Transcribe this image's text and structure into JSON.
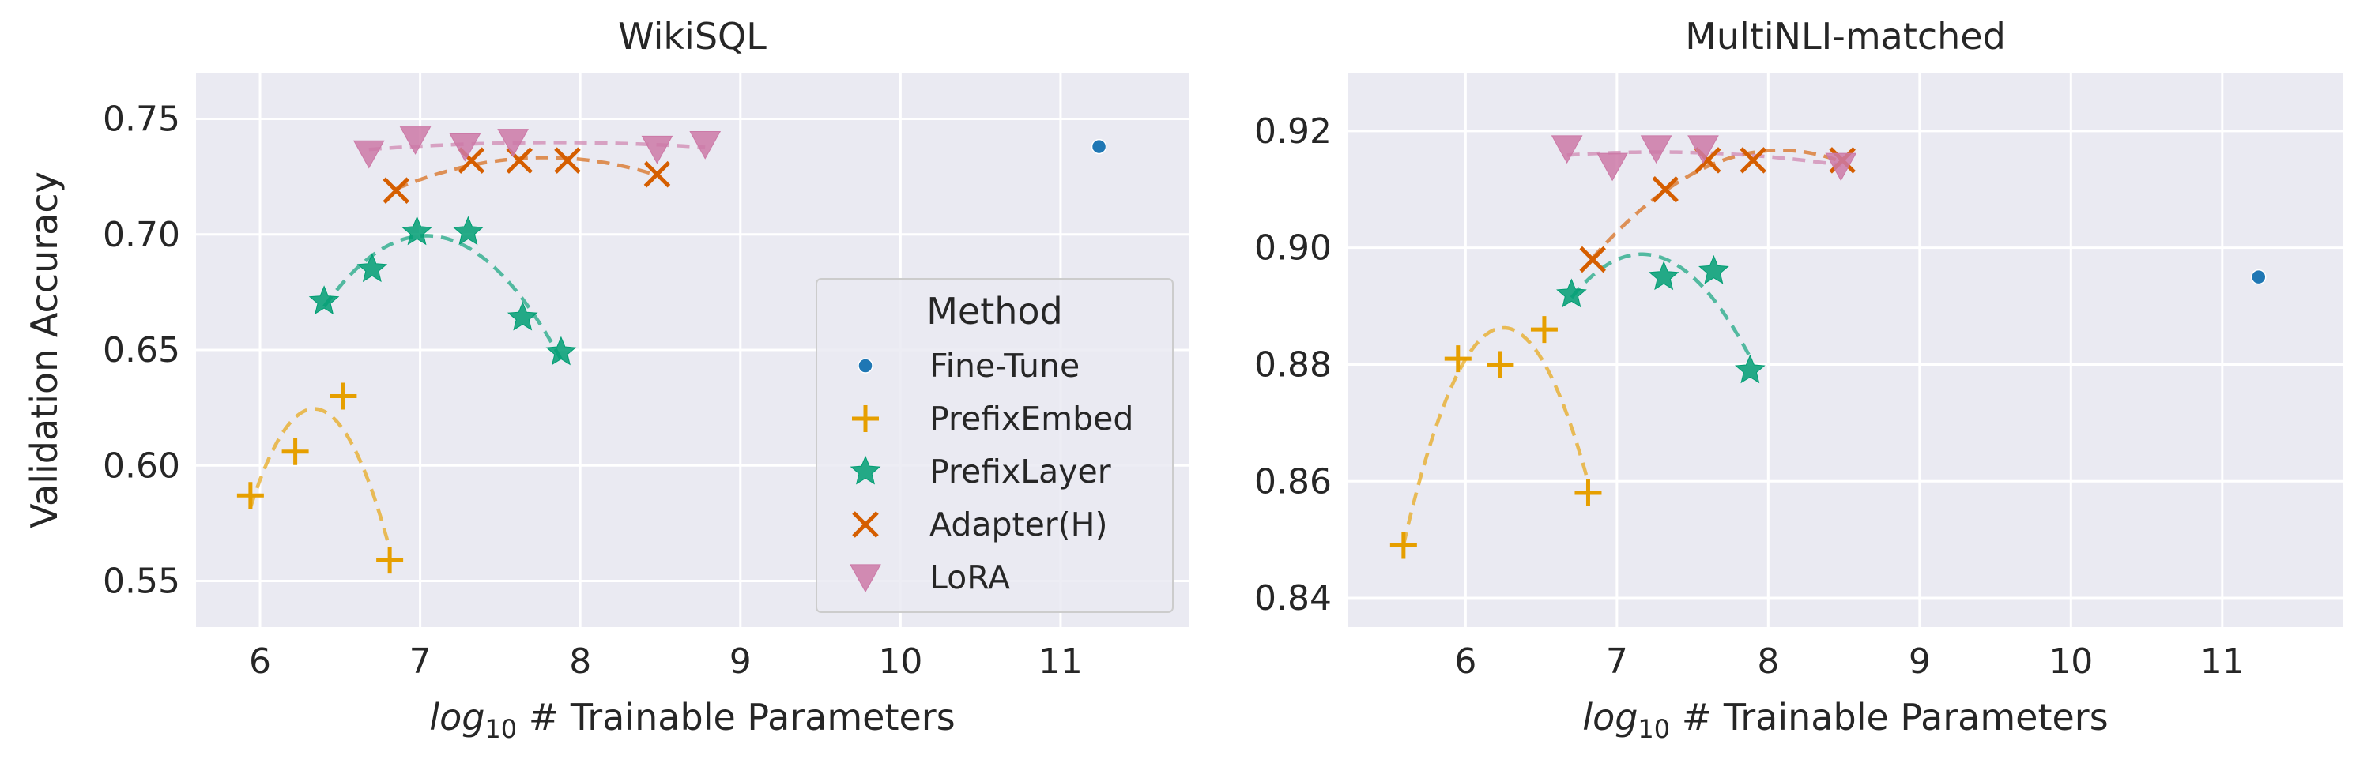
{
  "colors": {
    "background": "#eaeaf2",
    "grid": "#ffffff",
    "text": "#262626",
    "finetune": "#1f77b4",
    "prefixembed": "#e69f00",
    "prefixlayer": "#009e73",
    "adapter": "#d55e00",
    "lora": "#cc79a7"
  },
  "legend": {
    "title": "Method",
    "placement": "center-right of left panel",
    "items": [
      {
        "key": "finetune",
        "label": "Fine-Tune",
        "marker": "circle"
      },
      {
        "key": "prefixembed",
        "label": "PrefixEmbed",
        "marker": "plus"
      },
      {
        "key": "prefixlayer",
        "label": "PrefixLayer",
        "marker": "star"
      },
      {
        "key": "adapter",
        "label": "Adapter(H)",
        "marker": "x"
      },
      {
        "key": "lora",
        "label": "LoRA",
        "marker": "triangle-down"
      }
    ]
  },
  "chart_data": [
    {
      "type": "scatter",
      "title": "WikiSQL",
      "xlabel_prefix": "log",
      "xlabel_sub": "10",
      "xlabel_rest": " # Trainable Parameters",
      "ylabel": "Validation Accuracy",
      "xlim": [
        5.6,
        11.8
      ],
      "ylim": [
        0.53,
        0.77
      ],
      "xticks": [
        6,
        7,
        8,
        9,
        10,
        11
      ],
      "yticks": [
        0.55,
        0.6,
        0.65,
        0.7,
        0.75
      ],
      "ytick_labels": [
        "0.55",
        "0.60",
        "0.65",
        "0.70",
        "0.75"
      ],
      "grid": true,
      "series": [
        {
          "name": "Fine-Tune",
          "key": "finetune",
          "marker": "circle",
          "points": [
            [
              11.24,
              0.738
            ]
          ],
          "fit": false
        },
        {
          "name": "PrefixEmbed",
          "key": "prefixembed",
          "marker": "plus",
          "points": [
            [
              5.94,
              0.587
            ],
            [
              6.22,
              0.606
            ],
            [
              6.52,
              0.63
            ],
            [
              6.81,
              0.559
            ]
          ],
          "fit": true
        },
        {
          "name": "PrefixLayer",
          "key": "prefixlayer",
          "marker": "star",
          "points": [
            [
              6.4,
              0.671
            ],
            [
              6.7,
              0.685
            ],
            [
              6.98,
              0.701
            ],
            [
              7.3,
              0.701
            ],
            [
              7.64,
              0.664
            ],
            [
              7.88,
              0.649
            ]
          ],
          "fit": true
        },
        {
          "name": "Adapter(H)",
          "key": "adapter",
          "marker": "x",
          "points": [
            [
              6.85,
              0.719
            ],
            [
              7.32,
              0.732
            ],
            [
              7.62,
              0.732
            ],
            [
              7.92,
              0.732
            ],
            [
              8.48,
              0.726
            ]
          ],
          "fit": true
        },
        {
          "name": "LoRA",
          "key": "lora",
          "marker": "triangle-down",
          "points": [
            [
              6.68,
              0.735
            ],
            [
              6.97,
              0.741
            ],
            [
              7.28,
              0.738
            ],
            [
              7.58,
              0.74
            ],
            [
              8.48,
              0.737
            ],
            [
              8.78,
              0.739
            ]
          ],
          "fit": true
        }
      ]
    },
    {
      "type": "scatter",
      "title": "MultiNLI-matched",
      "xlabel_prefix": "log",
      "xlabel_sub": "10",
      "xlabel_rest": " # Trainable Parameters",
      "ylabel": "",
      "xlim": [
        5.22,
        11.8
      ],
      "ylim": [
        0.835,
        0.93
      ],
      "xticks": [
        6,
        7,
        8,
        9,
        10,
        11
      ],
      "yticks": [
        0.84,
        0.86,
        0.88,
        0.9,
        0.92
      ],
      "ytick_labels": [
        "0.84",
        "0.86",
        "0.88",
        "0.90",
        "0.92"
      ],
      "grid": true,
      "series": [
        {
          "name": "Fine-Tune",
          "key": "finetune",
          "marker": "circle",
          "points": [
            [
              11.24,
              0.895
            ]
          ],
          "fit": false
        },
        {
          "name": "PrefixEmbed",
          "key": "prefixembed",
          "marker": "plus",
          "points": [
            [
              5.59,
              0.849
            ],
            [
              5.95,
              0.881
            ],
            [
              6.23,
              0.88
            ],
            [
              6.52,
              0.886
            ],
            [
              6.81,
              0.858
            ]
          ],
          "fit": true
        },
        {
          "name": "PrefixLayer",
          "key": "prefixlayer",
          "marker": "star",
          "points": [
            [
              6.7,
              0.892
            ],
            [
              7.31,
              0.895
            ],
            [
              7.64,
              0.896
            ],
            [
              7.88,
              0.879
            ]
          ],
          "fit": true
        },
        {
          "name": "Adapter(H)",
          "key": "adapter",
          "marker": "x",
          "points": [
            [
              6.84,
              0.898
            ],
            [
              7.32,
              0.91
            ],
            [
              7.6,
              0.915
            ],
            [
              7.9,
              0.915
            ],
            [
              8.49,
              0.915
            ]
          ],
          "fit": true
        },
        {
          "name": "LoRA",
          "key": "lora",
          "marker": "triangle-down",
          "points": [
            [
              6.67,
              0.917
            ],
            [
              6.97,
              0.914
            ],
            [
              7.26,
              0.917
            ],
            [
              7.57,
              0.917
            ],
            [
              8.48,
              0.914
            ]
          ],
          "fit": true
        }
      ]
    }
  ]
}
